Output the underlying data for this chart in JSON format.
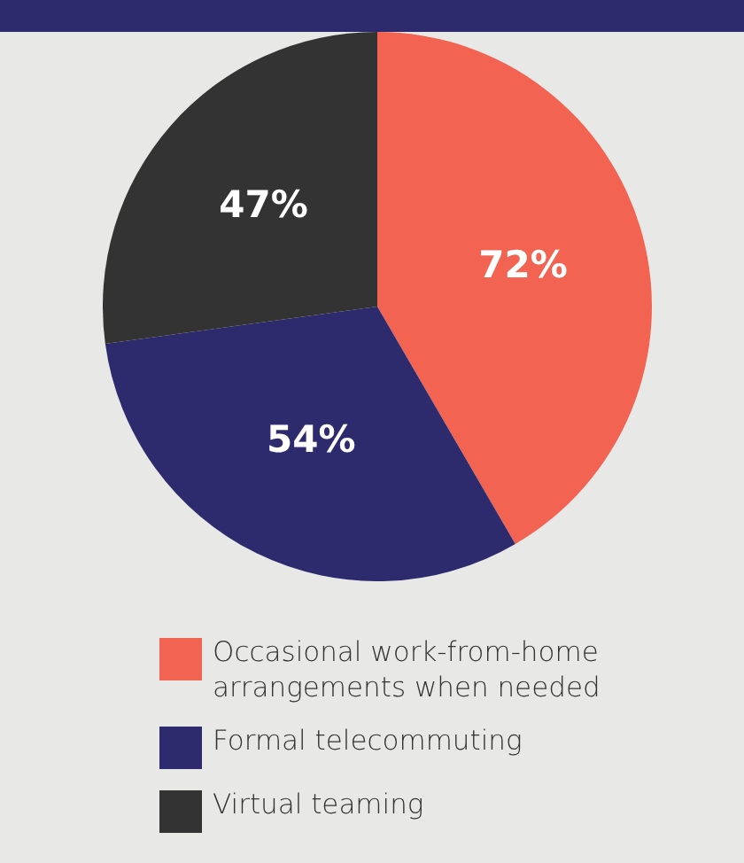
{
  "chart_data": {
    "type": "pie",
    "categories": [
      "Occasional work-from-home arrangements when needed",
      "Formal telecommuting",
      "Virtual teaming"
    ],
    "values": [
      72,
      54,
      47
    ],
    "value_labels": [
      "72%",
      "54%",
      "47%"
    ],
    "colors": [
      "#f26352",
      "#2d2a6e",
      "#333333"
    ],
    "legend": "bottom"
  }
}
